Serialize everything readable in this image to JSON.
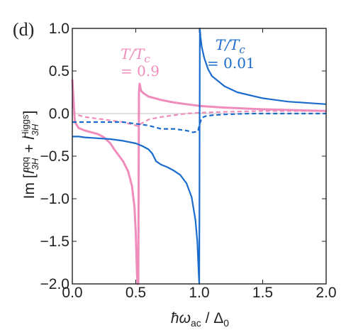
{
  "chart_data": {
    "type": "line",
    "panel_label": "(d)",
    "xlabel": "ħω_ac / Δ_0",
    "ylabel": "Im [I_3H^qqq + I_3H^Higgs]",
    "xlim": [
      0.0,
      2.0
    ],
    "ylim": [
      -2.0,
      1.0
    ],
    "x_ticks": [
      "0.0",
      "0.5",
      "1.0",
      "1.5",
      "2.0"
    ],
    "y_ticks": [
      "1.0",
      "0.5",
      "0.0",
      "−0.5",
      "−1.0",
      "−1.5",
      "−2.0"
    ],
    "grid": false,
    "colors": {
      "pink": "#f08cbc",
      "blue": "#1a6bcc",
      "zero_line": "#bdbdbd"
    },
    "annotations": {
      "pink": {
        "line1": "T/T",
        "sub": "c",
        "line2": "= 0.9"
      },
      "blue": {
        "line1": "T/T",
        "sub": "c",
        "line2": "= 0.01"
      }
    },
    "series": [
      {
        "color": "pink",
        "style": "solid",
        "x": [
          0.0,
          0.02,
          0.05,
          0.1,
          0.15,
          0.2,
          0.25,
          0.3,
          0.33,
          0.36,
          0.4,
          0.44,
          0.47,
          0.49,
          0.5,
          0.51,
          0.515,
          0.52,
          0.525,
          0.53,
          0.535,
          0.54,
          0.56,
          0.6,
          0.7,
          0.8,
          0.9,
          1.0,
          1.2,
          1.5,
          2.0
        ],
        "y": [
          0.4,
          -0.1,
          -0.17,
          -0.2,
          -0.22,
          -0.24,
          -0.28,
          -0.35,
          -0.42,
          -0.48,
          -0.56,
          -0.68,
          -0.85,
          -1.1,
          -1.4,
          -1.9,
          -2.0,
          -2.0,
          0.25,
          0.35,
          0.32,
          0.27,
          0.24,
          0.2,
          0.16,
          0.13,
          0.11,
          0.09,
          0.07,
          0.05,
          0.03
        ]
      },
      {
        "color": "pink",
        "style": "dashed",
        "x": [
          0.0,
          0.02,
          0.05,
          0.1,
          0.15,
          0.2,
          0.25,
          0.3,
          0.35,
          0.4,
          0.45,
          0.5,
          0.52,
          0.54,
          0.6,
          0.7,
          0.8,
          0.9,
          1.0,
          1.2,
          1.5,
          2.0
        ],
        "y": [
          0.12,
          0.0,
          -0.02,
          -0.04,
          -0.05,
          -0.06,
          -0.07,
          -0.08,
          -0.09,
          -0.1,
          -0.12,
          -0.14,
          -0.15,
          -0.12,
          -0.07,
          -0.04,
          -0.02,
          0.0,
          0.01,
          0.02,
          0.03,
          0.03
        ]
      },
      {
        "color": "blue",
        "style": "solid",
        "x": [
          0.0,
          0.05,
          0.1,
          0.2,
          0.3,
          0.4,
          0.5,
          0.55,
          0.6,
          0.63,
          0.66,
          0.7,
          0.75,
          0.8,
          0.85,
          0.9,
          0.94,
          0.97,
          0.985,
          0.995,
          1.0,
          1.005,
          1.01,
          1.02,
          1.04,
          1.07,
          1.1,
          1.2,
          1.3,
          1.5,
          1.7,
          2.0
        ],
        "y": [
          -0.27,
          -0.27,
          -0.28,
          -0.29,
          -0.3,
          -0.32,
          -0.35,
          -0.38,
          -0.42,
          -0.47,
          -0.56,
          -0.6,
          -0.63,
          -0.67,
          -0.72,
          -0.82,
          -0.98,
          -1.25,
          -1.5,
          -1.85,
          -2.0,
          1.0,
          0.9,
          0.78,
          0.65,
          0.52,
          0.44,
          0.32,
          0.25,
          0.18,
          0.14,
          0.11
        ]
      },
      {
        "color": "blue",
        "style": "dashed",
        "x": [
          0.0,
          0.1,
          0.2,
          0.3,
          0.4,
          0.45,
          0.5,
          0.55,
          0.6,
          0.65,
          0.7,
          0.75,
          0.8,
          0.9,
          0.95,
          0.99,
          1.0,
          1.02,
          1.05,
          1.1,
          1.2,
          1.4,
          1.6,
          1.8,
          2.0
        ],
        "y": [
          -0.1,
          -0.1,
          -0.1,
          -0.1,
          -0.1,
          -0.11,
          -0.12,
          -0.13,
          -0.14,
          -0.16,
          -0.18,
          -0.18,
          -0.18,
          -0.2,
          -0.22,
          -0.21,
          -0.14,
          -0.05,
          -0.03,
          -0.02,
          -0.01,
          0.0,
          0.0,
          0.0,
          0.0
        ]
      }
    ]
  }
}
